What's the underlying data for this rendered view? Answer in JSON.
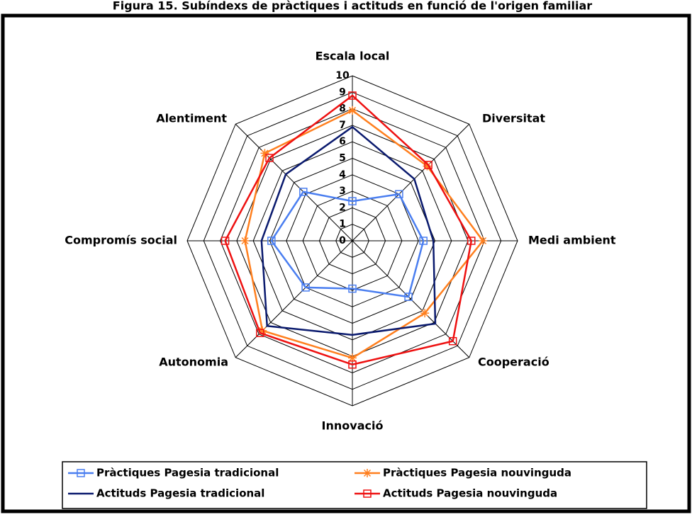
{
  "chart_data": {
    "type": "radar",
    "title": "Figura 15. Subíndexs de pràctiques i actituds en funció de l'origen familiar",
    "categories": [
      "Escala local",
      "Diversitat",
      "Medi ambient",
      "Cooperació",
      "Innovació",
      "Autonomia",
      "Compromís social",
      "Alentiment"
    ],
    "rlim": [
      0,
      10
    ],
    "rticks": [
      0,
      1,
      2,
      3,
      4,
      5,
      6,
      7,
      8,
      9,
      10
    ],
    "grid": true,
    "legend": "bottom",
    "series": [
      {
        "name": "Pràctiques Pagesia tradicional",
        "color": "#4a7ef0",
        "marker": "square",
        "values": [
          2.4,
          4.0,
          4.3,
          4.8,
          2.9,
          4.0,
          4.9,
          4.2
        ]
      },
      {
        "name": "Pràctiques Pagesia nouvinguda",
        "color": "#ff7f1e",
        "marker": "asterisk",
        "values": [
          7.9,
          6.4,
          7.9,
          6.2,
          7.1,
          7.7,
          6.5,
          7.5
        ]
      },
      {
        "name": "Actituds Pagesia tradicional",
        "color": "#0a1a6e",
        "marker": "none",
        "values": [
          6.9,
          5.3,
          4.9,
          7.1,
          5.7,
          7.3,
          5.5,
          5.7
        ]
      },
      {
        "name": "Actituds Pagesia nouvinguda",
        "color": "#ee1111",
        "marker": "square",
        "values": [
          8.8,
          6.5,
          7.2,
          8.6,
          7.5,
          7.9,
          7.7,
          7.1
        ]
      }
    ]
  }
}
